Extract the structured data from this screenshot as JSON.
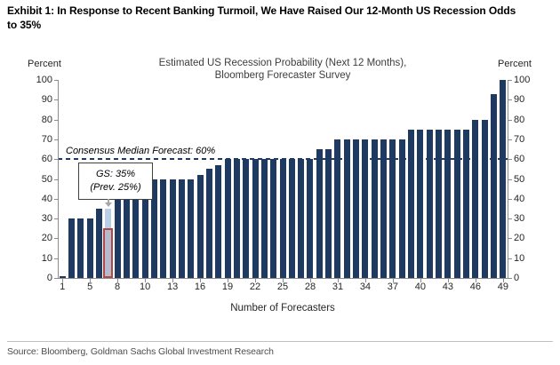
{
  "exhibit_title": {
    "line1": "Exhibit 1: In Response to Recent Banking Turmoil, We Have Raised Our 12-Month US Recession Odds",
    "line2": "to 35%"
  },
  "source_line": "Source: Bloomberg, Goldman Sachs Global Investment Research",
  "chart_data": {
    "type": "bar",
    "title_line1": "Estimated US Recession Probability (Next 12 Months),",
    "title_line2": "Bloomberg Forecaster Survey",
    "xlabel": "Number of Forecasters",
    "ylabel_left": "Percent",
    "ylabel_right": "Percent",
    "ylim": [
      0,
      100
    ],
    "ytick_step": 10,
    "grid": false,
    "n_bars": 49,
    "values": [
      1,
      30,
      30,
      30,
      35,
      35,
      40,
      45,
      48,
      50,
      50,
      50,
      50,
      50,
      50,
      52,
      55,
      57,
      60,
      60,
      60,
      60,
      60,
      60,
      60,
      60,
      60,
      60,
      65,
      65,
      70,
      70,
      70,
      70,
      70,
      70,
      70,
      70,
      75,
      75,
      75,
      75,
      75,
      75,
      75,
      80,
      80,
      93,
      100
    ],
    "xtick_labels": [
      "1",
      "5",
      "8",
      "10",
      "13",
      "16",
      "19",
      "22",
      "25",
      "28",
      "31",
      "34",
      "37",
      "40",
      "43",
      "46",
      "49"
    ],
    "xtick_bar_indices": [
      1,
      4,
      7,
      10,
      13,
      16,
      19,
      22,
      25,
      28,
      31,
      34,
      37,
      40,
      43,
      46,
      49
    ],
    "consensus_line": {
      "label": "Consensus Median Forecast: 60%",
      "value": 60
    },
    "gs_annotation": {
      "label_line1": "GS: 35%",
      "label_line2": "(Prev. 25%)",
      "bar_index": 6,
      "new_value": 35,
      "prev_value": 25
    },
    "colors": {
      "bar": "#1f3a60",
      "gs_new_bar": "#b9cfe8",
      "gs_prev_border": "#b04846",
      "gs_prev_fill": "rgba(176,72,70,0.16)",
      "dashed_line": "#1f3a60"
    }
  }
}
